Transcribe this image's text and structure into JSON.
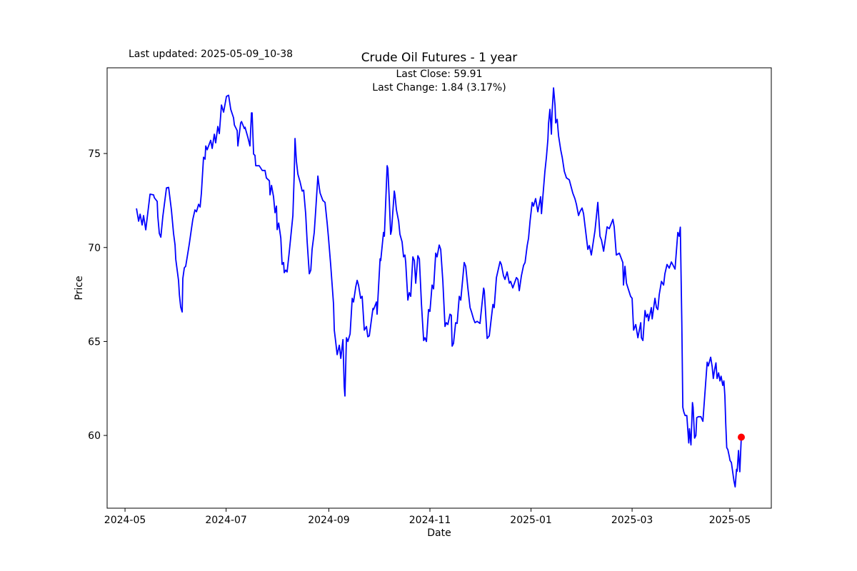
{
  "header": {
    "last_updated": "Last updated: 2025-05-09_10-38"
  },
  "annotation": {
    "line1": "Last Close: 59.91",
    "line2": "Last Change: 1.84 (3.17%)"
  },
  "chart_data": {
    "type": "line",
    "title": "Crude Oil Futures - 1 year",
    "xlabel": "Date",
    "ylabel": "Price",
    "line_color": "#0000ff",
    "last_point_color": "#ff0000",
    "axis_color": "#000000",
    "last_close": 59.91,
    "last_change": 1.84,
    "last_change_pct": "3.17%",
    "grid": false,
    "legend": "none",
    "x_unit": "days since 2024-05-01",
    "x_ticks": [
      {
        "t": 0,
        "label": "2024-05"
      },
      {
        "t": 61,
        "label": "2024-07"
      },
      {
        "t": 123,
        "label": "2024-09"
      },
      {
        "t": 184,
        "label": "2024-11"
      },
      {
        "t": 245,
        "label": "2025-01"
      },
      {
        "t": 306,
        "label": "2025-03"
      },
      {
        "t": 365,
        "label": "2025-05"
      }
    ],
    "y_ticks": [
      60,
      65,
      70,
      75
    ],
    "xlim": [
      -10.8,
      390
    ],
    "ylim": [
      56.13,
      79.56
    ],
    "points": [
      [
        6.9,
        72.08
      ],
      [
        8.2,
        71.4
      ],
      [
        9.1,
        71.77
      ],
      [
        10.3,
        71.2
      ],
      [
        11.2,
        71.7
      ],
      [
        12.5,
        70.94
      ],
      [
        15.1,
        72.84
      ],
      [
        17.2,
        72.8
      ],
      [
        17.7,
        72.65
      ],
      [
        19.4,
        72.45
      ],
      [
        19.8,
        71.65
      ],
      [
        20.7,
        70.75
      ],
      [
        21.6,
        70.55
      ],
      [
        22.8,
        71.65
      ],
      [
        25.0,
        73.17
      ],
      [
        26.3,
        73.2
      ],
      [
        28.0,
        72.0
      ],
      [
        29.3,
        70.75
      ],
      [
        30.2,
        70.14
      ],
      [
        30.6,
        69.38
      ],
      [
        32.3,
        68.24
      ],
      [
        32.8,
        67.48
      ],
      [
        33.6,
        66.83
      ],
      [
        34.5,
        66.57
      ],
      [
        34.9,
        68.35
      ],
      [
        35.8,
        68.92
      ],
      [
        36.6,
        69.0
      ],
      [
        37.9,
        69.7
      ],
      [
        38.8,
        70.2
      ],
      [
        40.1,
        71.0
      ],
      [
        40.9,
        71.5
      ],
      [
        42.2,
        72.0
      ],
      [
        43.1,
        71.9
      ],
      [
        44.4,
        72.3
      ],
      [
        45.3,
        72.15
      ],
      [
        46.1,
        72.9
      ],
      [
        47.4,
        74.8
      ],
      [
        48.3,
        74.7
      ],
      [
        48.7,
        75.4
      ],
      [
        49.6,
        75.2
      ],
      [
        51.7,
        75.7
      ],
      [
        52.6,
        75.27
      ],
      [
        53.9,
        76.03
      ],
      [
        54.7,
        75.57
      ],
      [
        56.0,
        76.44
      ],
      [
        56.9,
        76.06
      ],
      [
        58.2,
        77.58
      ],
      [
        59.5,
        77.2
      ],
      [
        61.2,
        78.04
      ],
      [
        62.5,
        78.1
      ],
      [
        63.8,
        77.35
      ],
      [
        65.5,
        76.9
      ],
      [
        66.0,
        76.52
      ],
      [
        67.7,
        76.22
      ],
      [
        68.1,
        75.4
      ],
      [
        69.8,
        76.63
      ],
      [
        70.3,
        76.7
      ],
      [
        72.0,
        76.33
      ],
      [
        72.4,
        76.4
      ],
      [
        74.1,
        75.87
      ],
      [
        75.4,
        75.4
      ],
      [
        76.3,
        77.16
      ],
      [
        76.7,
        77.16
      ],
      [
        77.6,
        74.97
      ],
      [
        78.4,
        74.9
      ],
      [
        78.9,
        74.35
      ],
      [
        81.0,
        74.35
      ],
      [
        82.8,
        74.1
      ],
      [
        84.5,
        74.1
      ],
      [
        85.3,
        73.7
      ],
      [
        87.1,
        73.55
      ],
      [
        87.5,
        72.8
      ],
      [
        88.4,
        73.3
      ],
      [
        89.6,
        72.7
      ],
      [
        90.5,
        71.85
      ],
      [
        91.4,
        72.2
      ],
      [
        91.8,
        70.95
      ],
      [
        92.7,
        71.3
      ],
      [
        94.0,
        70.5
      ],
      [
        94.8,
        69.1
      ],
      [
        95.7,
        69.2
      ],
      [
        96.1,
        68.66
      ],
      [
        97.0,
        68.8
      ],
      [
        97.8,
        68.7
      ],
      [
        99.1,
        69.75
      ],
      [
        100.4,
        70.9
      ],
      [
        101.3,
        71.7
      ],
      [
        102.1,
        73.9
      ],
      [
        102.6,
        75.8
      ],
      [
        103.4,
        74.6
      ],
      [
        104.3,
        73.9
      ],
      [
        105.6,
        73.5
      ],
      [
        106.9,
        73.0
      ],
      [
        107.8,
        73.05
      ],
      [
        109.0,
        71.8
      ],
      [
        109.9,
        70.3
      ],
      [
        111.2,
        68.6
      ],
      [
        112.1,
        68.8
      ],
      [
        112.9,
        69.9
      ],
      [
        114.2,
        70.8
      ],
      [
        115.1,
        72.0
      ],
      [
        116.4,
        73.8
      ],
      [
        117.2,
        73.2
      ],
      [
        117.7,
        72.9
      ],
      [
        119.4,
        72.5
      ],
      [
        120.7,
        72.4
      ],
      [
        122.0,
        71.3
      ],
      [
        122.8,
        70.5
      ],
      [
        124.1,
        69.1
      ],
      [
        125.0,
        68.0
      ],
      [
        125.8,
        67.0
      ],
      [
        126.3,
        65.6
      ],
      [
        127.1,
        65.0
      ],
      [
        128.0,
        64.3
      ],
      [
        129.3,
        64.8
      ],
      [
        130.2,
        64.1
      ],
      [
        131.5,
        65.1
      ],
      [
        132.3,
        62.6
      ],
      [
        132.7,
        62.1
      ],
      [
        133.6,
        65.2
      ],
      [
        134.5,
        65.0
      ],
      [
        135.8,
        65.4
      ],
      [
        137.1,
        67.3
      ],
      [
        137.9,
        67.1
      ],
      [
        139.2,
        67.9
      ],
      [
        140.1,
        68.25
      ],
      [
        140.9,
        68.0
      ],
      [
        142.2,
        67.3
      ],
      [
        143.1,
        67.4
      ],
      [
        144.4,
        65.6
      ],
      [
        145.7,
        65.8
      ],
      [
        146.5,
        65.25
      ],
      [
        147.4,
        65.3
      ],
      [
        149.6,
        66.76
      ],
      [
        150.0,
        66.7
      ],
      [
        151.7,
        67.1
      ],
      [
        152.1,
        66.45
      ],
      [
        153.9,
        69.4
      ],
      [
        154.3,
        69.3
      ],
      [
        156.0,
        70.8
      ],
      [
        156.5,
        70.6
      ],
      [
        158.2,
        74.35
      ],
      [
        158.6,
        74.2
      ],
      [
        159.5,
        72.45
      ],
      [
        160.3,
        70.7
      ],
      [
        160.8,
        70.9
      ],
      [
        162.5,
        73.0
      ],
      [
        162.9,
        72.8
      ],
      [
        163.8,
        72.0
      ],
      [
        165.1,
        71.4
      ],
      [
        165.9,
        70.7
      ],
      [
        167.2,
        70.3
      ],
      [
        168.1,
        69.5
      ],
      [
        168.9,
        69.6
      ],
      [
        169.4,
        69.2
      ],
      [
        170.7,
        67.2
      ],
      [
        171.5,
        67.6
      ],
      [
        172.4,
        67.4
      ],
      [
        173.7,
        69.5
      ],
      [
        174.6,
        69.3
      ],
      [
        175.4,
        68.1
      ],
      [
        176.7,
        69.56
      ],
      [
        177.6,
        69.4
      ],
      [
        178.9,
        66.95
      ],
      [
        180.2,
        65.05
      ],
      [
        181.0,
        65.2
      ],
      [
        181.9,
        65.0
      ],
      [
        183.2,
        66.7
      ],
      [
        184.0,
        66.6
      ],
      [
        185.3,
        68.0
      ],
      [
        186.2,
        67.8
      ],
      [
        187.5,
        69.7
      ],
      [
        188.3,
        69.5
      ],
      [
        189.6,
        70.13
      ],
      [
        190.5,
        69.9
      ],
      [
        191.8,
        68.2
      ],
      [
        193.1,
        65.8
      ],
      [
        193.9,
        66.0
      ],
      [
        194.8,
        65.9
      ],
      [
        196.1,
        66.45
      ],
      [
        196.9,
        66.4
      ],
      [
        197.4,
        64.75
      ],
      [
        198.2,
        64.9
      ],
      [
        199.5,
        66.0
      ],
      [
        200.4,
        65.96
      ],
      [
        201.7,
        67.4
      ],
      [
        202.6,
        67.2
      ],
      [
        204.7,
        69.2
      ],
      [
        205.6,
        69.0
      ],
      [
        206.9,
        67.85
      ],
      [
        208.2,
        66.8
      ],
      [
        209.0,
        66.6
      ],
      [
        210.3,
        66.2
      ],
      [
        211.2,
        66.0
      ],
      [
        212.5,
        66.07
      ],
      [
        214.2,
        65.96
      ],
      [
        216.4,
        67.84
      ],
      [
        216.8,
        67.7
      ],
      [
        218.5,
        65.16
      ],
      [
        219.8,
        65.3
      ],
      [
        222.0,
        66.97
      ],
      [
        222.8,
        66.8
      ],
      [
        224.1,
        68.4
      ],
      [
        226.3,
        69.25
      ],
      [
        227.1,
        69.1
      ],
      [
        228.4,
        68.5
      ],
      [
        229.3,
        68.3
      ],
      [
        230.6,
        68.7
      ],
      [
        231.9,
        68.1
      ],
      [
        232.7,
        68.2
      ],
      [
        234.0,
        67.85
      ],
      [
        236.2,
        68.4
      ],
      [
        237.1,
        68.3
      ],
      [
        237.9,
        67.7
      ],
      [
        239.2,
        68.5
      ],
      [
        240.5,
        69.05
      ],
      [
        241.4,
        69.2
      ],
      [
        242.7,
        70.1
      ],
      [
        243.5,
        70.5
      ],
      [
        244.4,
        71.4
      ],
      [
        245.7,
        72.4
      ],
      [
        246.5,
        72.2
      ],
      [
        247.8,
        72.6
      ],
      [
        249.1,
        71.9
      ],
      [
        250.8,
        72.7
      ],
      [
        251.3,
        71.8
      ],
      [
        253.4,
        74.05
      ],
      [
        254.3,
        74.8
      ],
      [
        255.2,
        75.76
      ],
      [
        255.6,
        76.6
      ],
      [
        256.4,
        77.35
      ],
      [
        257.3,
        76.03
      ],
      [
        257.7,
        77.16
      ],
      [
        258.6,
        78.49
      ],
      [
        259.5,
        77.54
      ],
      [
        259.9,
        76.63
      ],
      [
        260.8,
        76.82
      ],
      [
        261.6,
        75.95
      ],
      [
        262.9,
        75.2
      ],
      [
        263.8,
        74.8
      ],
      [
        265.1,
        74.05
      ],
      [
        266.4,
        73.7
      ],
      [
        268.1,
        73.6
      ],
      [
        270.2,
        72.9
      ],
      [
        271.5,
        72.6
      ],
      [
        272.4,
        72.3
      ],
      [
        273.7,
        71.7
      ],
      [
        274.5,
        71.9
      ],
      [
        275.8,
        72.1
      ],
      [
        276.7,
        71.8
      ],
      [
        279.3,
        69.9
      ],
      [
        280.2,
        70.1
      ],
      [
        281.4,
        69.6
      ],
      [
        283.6,
        70.9
      ],
      [
        285.3,
        72.4
      ],
      [
        286.6,
        70.6
      ],
      [
        287.5,
        70.4
      ],
      [
        288.8,
        69.8
      ],
      [
        290.9,
        71.1
      ],
      [
        292.2,
        71.0
      ],
      [
        294.4,
        71.5
      ],
      [
        295.2,
        71.1
      ],
      [
        296.5,
        69.6
      ],
      [
        298.3,
        69.7
      ],
      [
        300.4,
        69.2
      ],
      [
        300.8,
        68.0
      ],
      [
        301.7,
        69.0
      ],
      [
        302.6,
        68.1
      ],
      [
        305.1,
        67.4
      ],
      [
        306.0,
        67.3
      ],
      [
        306.9,
        65.6
      ],
      [
        308.2,
        65.9
      ],
      [
        309.5,
        65.2
      ],
      [
        311.2,
        66.0
      ],
      [
        311.6,
        65.2
      ],
      [
        312.5,
        65.05
      ],
      [
        313.8,
        66.65
      ],
      [
        314.6,
        66.3
      ],
      [
        315.5,
        66.45
      ],
      [
        315.9,
        66.1
      ],
      [
        317.6,
        66.8
      ],
      [
        318.1,
        66.2
      ],
      [
        319.8,
        67.3
      ],
      [
        320.7,
        66.8
      ],
      [
        321.5,
        66.7
      ],
      [
        322.4,
        67.5
      ],
      [
        323.7,
        68.2
      ],
      [
        325.0,
        68.0
      ],
      [
        325.8,
        68.6
      ],
      [
        327.1,
        69.1
      ],
      [
        328.4,
        68.9
      ],
      [
        329.7,
        69.23
      ],
      [
        331.9,
        68.85
      ],
      [
        333.6,
        70.8
      ],
      [
        334.4,
        70.6
      ],
      [
        335.1,
        71.08
      ],
      [
        336.0,
        66.0
      ],
      [
        336.6,
        61.5
      ],
      [
        337.2,
        61.25
      ],
      [
        338.0,
        61.06
      ],
      [
        339.0,
        61.06
      ],
      [
        340.2,
        59.6
      ],
      [
        340.6,
        60.36
      ],
      [
        341.5,
        59.5
      ],
      [
        342.4,
        61.75
      ],
      [
        342.8,
        61.5
      ],
      [
        343.7,
        59.86
      ],
      [
        344.5,
        60.0
      ],
      [
        345.0,
        60.95
      ],
      [
        346.0,
        61.0
      ],
      [
        347.5,
        61.0
      ],
      [
        348.7,
        60.75
      ],
      [
        351.3,
        63.9
      ],
      [
        352.0,
        63.7
      ],
      [
        353.4,
        64.16
      ],
      [
        354.3,
        63.66
      ],
      [
        355.0,
        63.03
      ],
      [
        355.8,
        63.5
      ],
      [
        356.6,
        63.86
      ],
      [
        357.3,
        63.03
      ],
      [
        358.2,
        63.33
      ],
      [
        359.0,
        62.9
      ],
      [
        359.7,
        63.15
      ],
      [
        360.7,
        62.66
      ],
      [
        361.4,
        62.9
      ],
      [
        362.0,
        62.1
      ],
      [
        362.5,
        60.64
      ],
      [
        363.1,
        59.35
      ],
      [
        363.8,
        59.24
      ],
      [
        364.7,
        58.86
      ],
      [
        365.1,
        58.67
      ],
      [
        365.9,
        58.56
      ],
      [
        366.8,
        57.99
      ],
      [
        367.4,
        57.6
      ],
      [
        368.2,
        57.26
      ],
      [
        369.0,
        58.2
      ],
      [
        369.4,
        58.1
      ],
      [
        370.2,
        59.2
      ],
      [
        371.0,
        58.07
      ],
      [
        371.9,
        59.91
      ]
    ]
  }
}
